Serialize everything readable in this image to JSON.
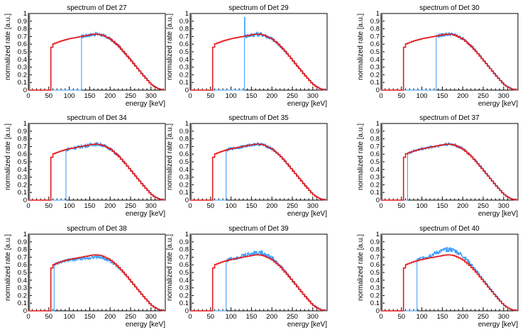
{
  "colors": {
    "measured": "#3399ff",
    "simulated": "#e41a1c",
    "axes": "#000000",
    "background": "#ffffff"
  },
  "chart_data": [
    {
      "type": "line",
      "title": "spectrum of Det 27",
      "threshold": 130,
      "noise": 0.035,
      "spike": null,
      "bump": 0.0
    },
    {
      "type": "line",
      "title": "spectrum of Det 29",
      "threshold": 133,
      "noise": 0.04,
      "spike": {
        "x": 133,
        "y": 0.95
      },
      "bump": 0.0
    },
    {
      "type": "line",
      "title": "spectrum of Det 30",
      "threshold": 135,
      "noise": 0.035,
      "spike": null,
      "bump": 0.0
    },
    {
      "type": "line",
      "title": "spectrum of Det 34",
      "threshold": 92,
      "noise": 0.035,
      "spike": null,
      "bump": 0.0
    },
    {
      "type": "line",
      "title": "spectrum of Det 35",
      "threshold": 88,
      "noise": 0.03,
      "spike": null,
      "bump": 0.0
    },
    {
      "type": "line",
      "title": "spectrum of Det 37",
      "threshold": 65,
      "noise": 0.03,
      "spike": null,
      "bump": 0.0
    },
    {
      "type": "line",
      "title": "spectrum of Det 38",
      "threshold": 63,
      "noise": 0.03,
      "spike": null,
      "bump": -0.03
    },
    {
      "type": "line",
      "title": "spectrum of Det 39",
      "threshold": 88,
      "noise": 0.04,
      "spike": null,
      "bump": 0.03
    },
    {
      "type": "line",
      "title": "spectrum of Det 40",
      "threshold": 88,
      "noise": 0.04,
      "spike": null,
      "bump": 0.07
    }
  ],
  "shared": {
    "xlabel": "energy [keV]",
    "ylabel": "normalized rate [a.u.]",
    "xlim": [
      0,
      335
    ],
    "ylim": [
      0,
      1.0
    ],
    "xticks": [
      0,
      50,
      100,
      150,
      200,
      250,
      300
    ],
    "yticks": [
      0,
      0.1,
      0.2,
      0.3,
      0.4,
      0.5,
      0.6,
      0.7,
      0.8,
      0.9,
      1
    ],
    "ytick_labels": [
      "0",
      "0.1",
      "0.2",
      "0.3",
      "0.4",
      "0.5",
      "0.6",
      "0.7",
      "0.8",
      "0.9",
      "1"
    ],
    "simulated_threshold": 55,
    "simulated_curve": {
      "energy": [
        55,
        60,
        80,
        100,
        120,
        140,
        160,
        170,
        180,
        200,
        220,
        240,
        260,
        280,
        300,
        310,
        320,
        330
      ],
      "rate": [
        0.52,
        0.6,
        0.64,
        0.67,
        0.69,
        0.71,
        0.73,
        0.73,
        0.72,
        0.67,
        0.58,
        0.46,
        0.33,
        0.2,
        0.08,
        0.04,
        0.015,
        0.003
      ]
    }
  }
}
